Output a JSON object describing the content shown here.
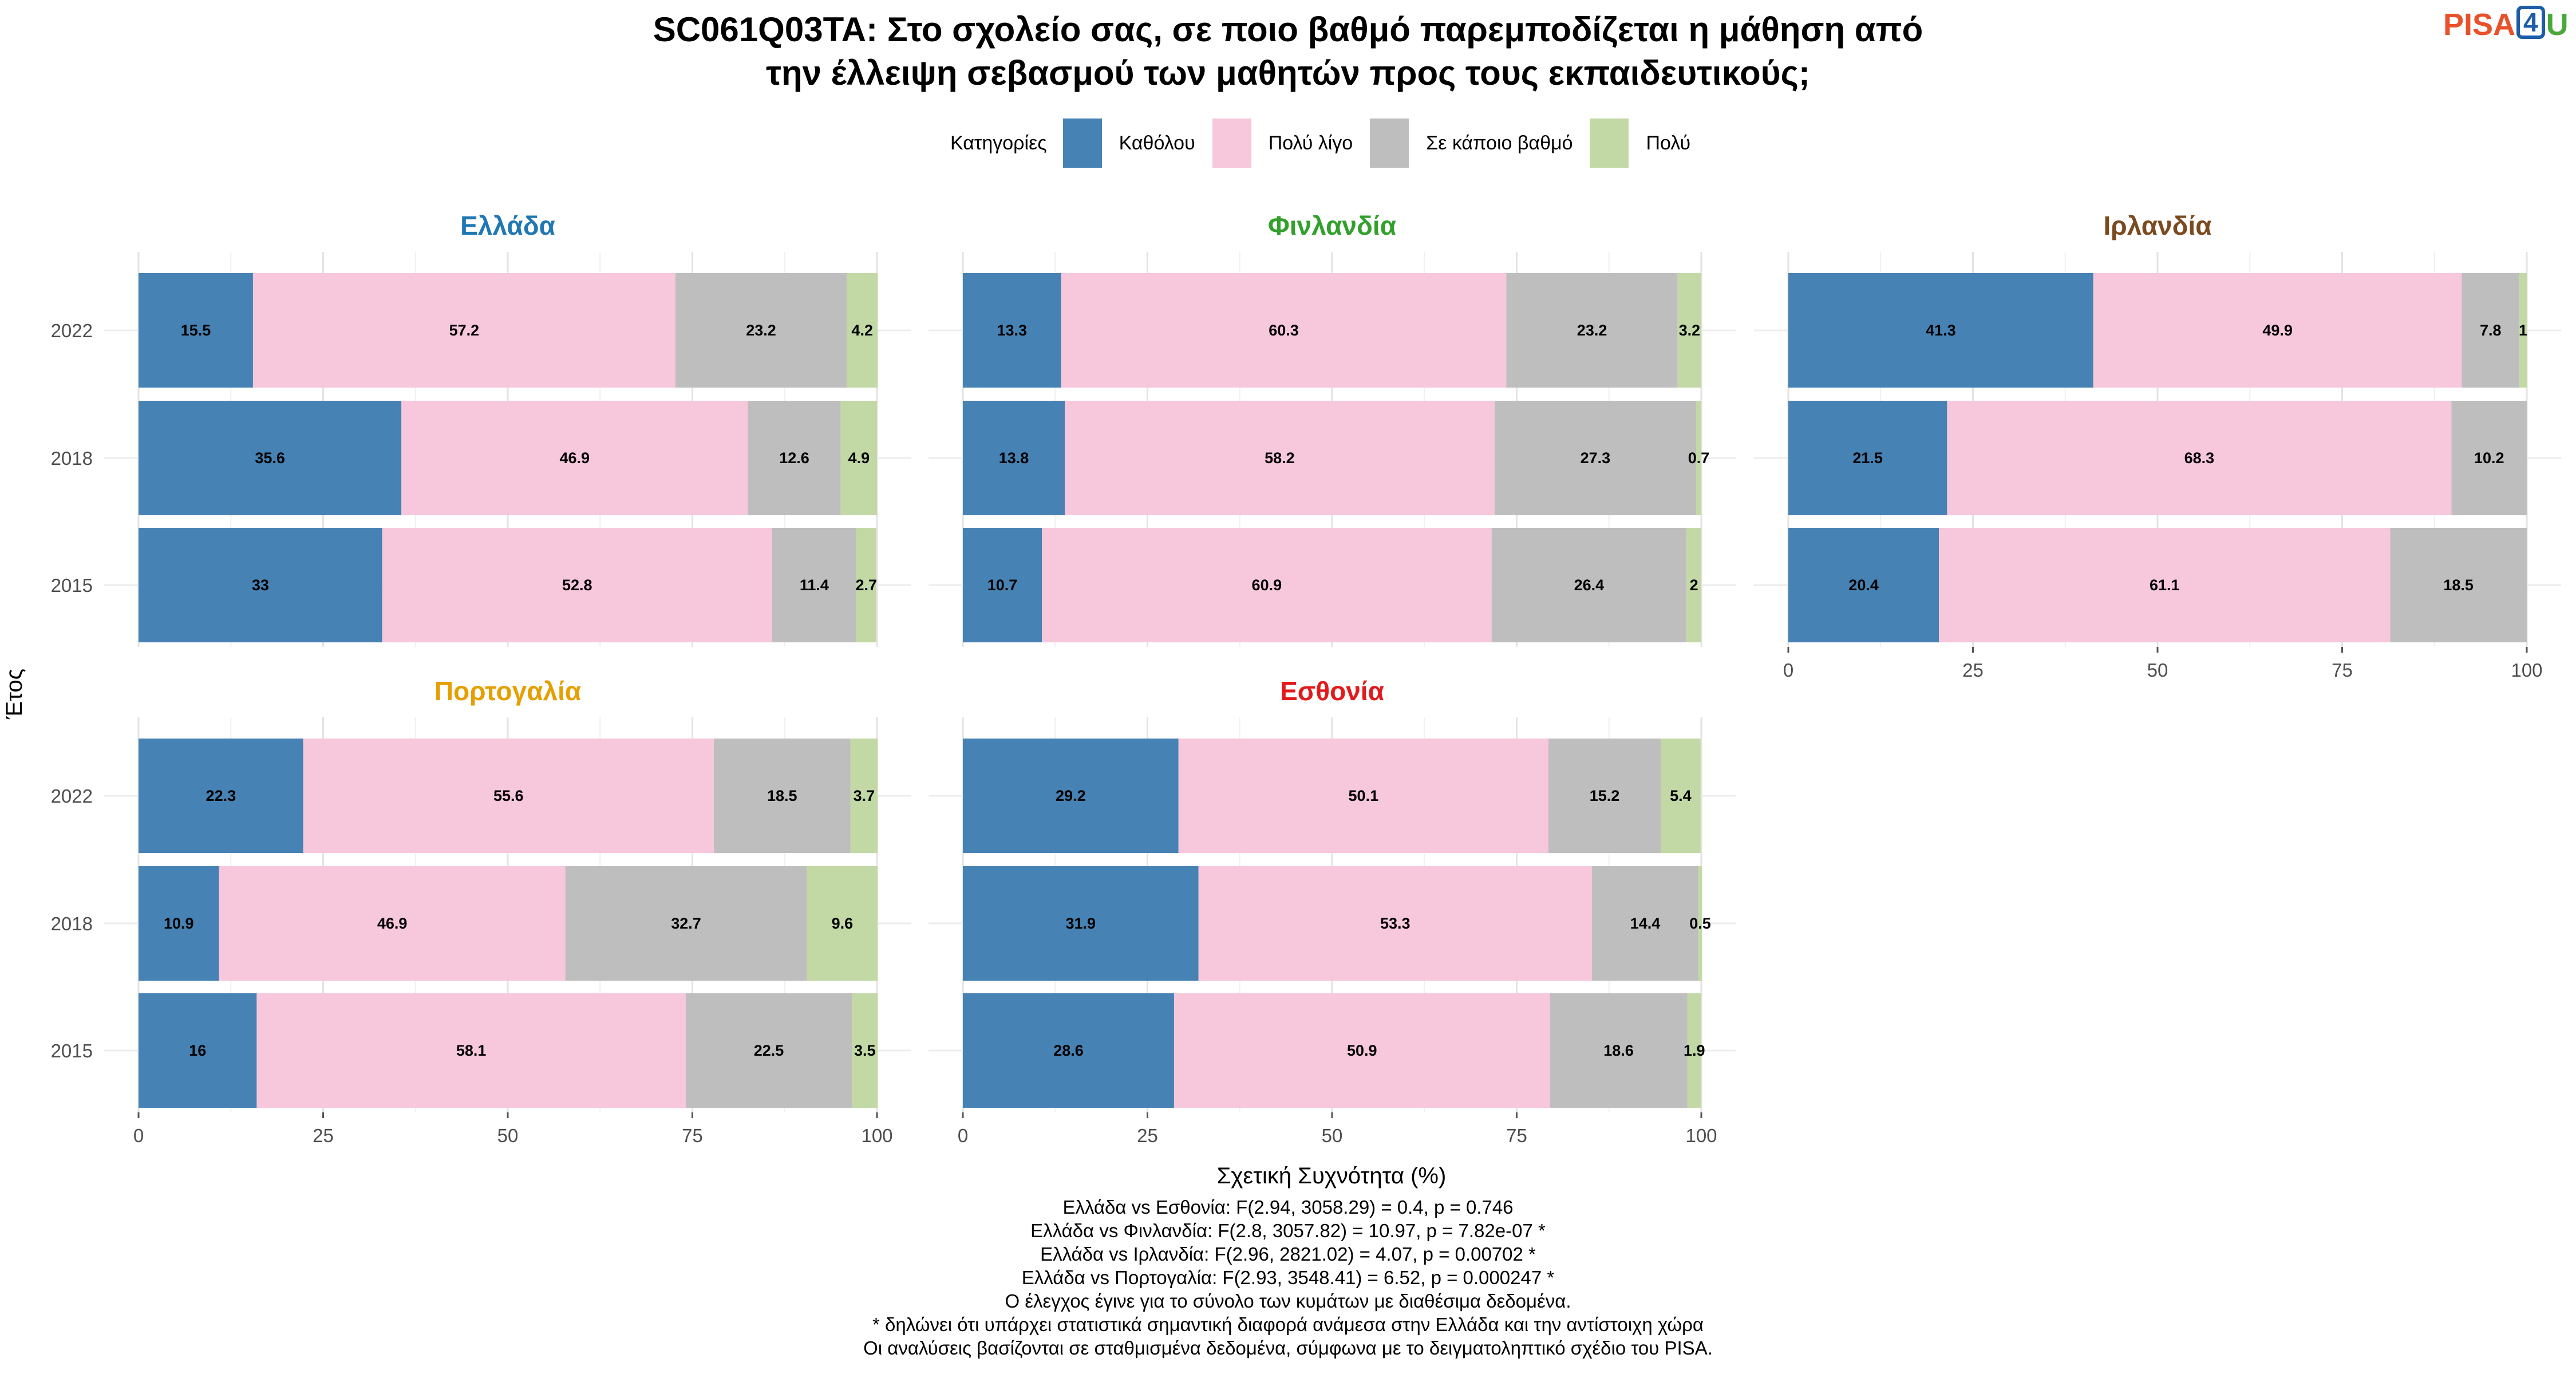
{
  "title_lines": [
    "SC061Q03TA: Στο σχολείο σας, σε ποιο βαθμό παρεμποδίζεται η μάθηση από",
    "την έλλειψη σεβασμού των μαθητών προς τους εκπαιδευτικούς;"
  ],
  "logo": {
    "part1": "PISA",
    "part2": "4",
    "part3": "U"
  },
  "legend": {
    "title": "Κατηγορίες",
    "items": [
      {
        "label": "Καθόλου",
        "color": "#4682b4"
      },
      {
        "label": "Πολύ λίγο",
        "color": "#f7c7dc"
      },
      {
        "label": "Σε κάποιο βαθμό",
        "color": "#bebebe"
      },
      {
        "label": "Πολύ",
        "color": "#c2d9a5"
      }
    ]
  },
  "footnotes": [
    "Ελλάδα vs Εσθονία: F(2.94, 3058.29) = 0.4, p = 0.746",
    "Ελλάδα vs Φινλανδία: F(2.8, 3057.82) = 10.97, p = 7.82e-07 *",
    "Ελλάδα vs Ιρλανδία: F(2.96, 2821.02) = 4.07, p = 0.00702 *",
    "Ελλάδα vs Πορτογαλία: F(2.93, 3548.41) = 6.52, p = 0.000247 *",
    "Ο έλεγχος έγινε για το σύνολο των κυμάτων με διαθέσιμα δεδομένα.",
    "* δηλώνει ότι υπάρχει στατιστικά σημαντική διαφορά ανάμεσα στην Ελλάδα και την αντίστοιχη χώρα",
    "Οι αναλύσεις βασίζονται σε σταθμισμένα δεδομένα, σύμφωνα με το δειγματοληπτικό σχέδιο του PISA."
  ],
  "chart_data": {
    "type": "bar",
    "orientation": "horizontal",
    "stacked": true,
    "xlabel": "Σχετική Συχνότητα (%)",
    "ylabel": "Έτος",
    "xlim": [
      0,
      100
    ],
    "x_ticks": [
      0,
      25,
      50,
      75,
      100
    ],
    "grid": true,
    "legend_position": "top",
    "categories_order": [
      "2022",
      "2018",
      "2015"
    ],
    "series_names": [
      "Καθόλου",
      "Πολύ λίγο",
      "Σε κάποιο βαθμό",
      "Πολύ"
    ],
    "panels": [
      {
        "name": "Ελλάδα",
        "title_color": "#1f78b4",
        "rows": [
          {
            "year": "2022",
            "values": [
              15.5,
              57.2,
              23.2,
              4.2
            ]
          },
          {
            "year": "2018",
            "values": [
              35.6,
              46.9,
              12.6,
              4.9
            ]
          },
          {
            "year": "2015",
            "values": [
              33,
              52.8,
              11.4,
              2.7
            ]
          }
        ]
      },
      {
        "name": "Φινλανδία",
        "title_color": "#33a02c",
        "rows": [
          {
            "year": "2022",
            "values": [
              13.3,
              60.3,
              23.2,
              3.2
            ]
          },
          {
            "year": "2018",
            "values": [
              13.8,
              58.2,
              27.3,
              0.7
            ]
          },
          {
            "year": "2015",
            "values": [
              10.7,
              60.9,
              26.4,
              2
            ]
          }
        ]
      },
      {
        "name": "Ιρλανδία",
        "title_color": "#7b4a1e",
        "rows": [
          {
            "year": "2022",
            "values": [
              41.3,
              49.9,
              7.8,
              1
            ]
          },
          {
            "year": "2018",
            "values": [
              21.5,
              68.3,
              10.2,
              null
            ]
          },
          {
            "year": "2015",
            "values": [
              20.4,
              61.1,
              18.5,
              null
            ]
          }
        ]
      },
      {
        "name": "Πορτογαλία",
        "title_color": "#e69f00",
        "rows": [
          {
            "year": "2022",
            "values": [
              22.3,
              55.6,
              18.5,
              3.7
            ]
          },
          {
            "year": "2018",
            "values": [
              10.9,
              46.9,
              32.7,
              9.6
            ]
          },
          {
            "year": "2015",
            "values": [
              16,
              58.1,
              22.5,
              3.5
            ]
          }
        ]
      },
      {
        "name": "Εσθονία",
        "title_color": "#e31a1c",
        "rows": [
          {
            "year": "2022",
            "values": [
              29.2,
              50.1,
              15.2,
              5.4
            ]
          },
          {
            "year": "2018",
            "values": [
              31.9,
              53.3,
              14.4,
              0.5
            ]
          },
          {
            "year": "2015",
            "values": [
              28.6,
              50.9,
              18.6,
              1.9
            ]
          }
        ]
      }
    ]
  }
}
